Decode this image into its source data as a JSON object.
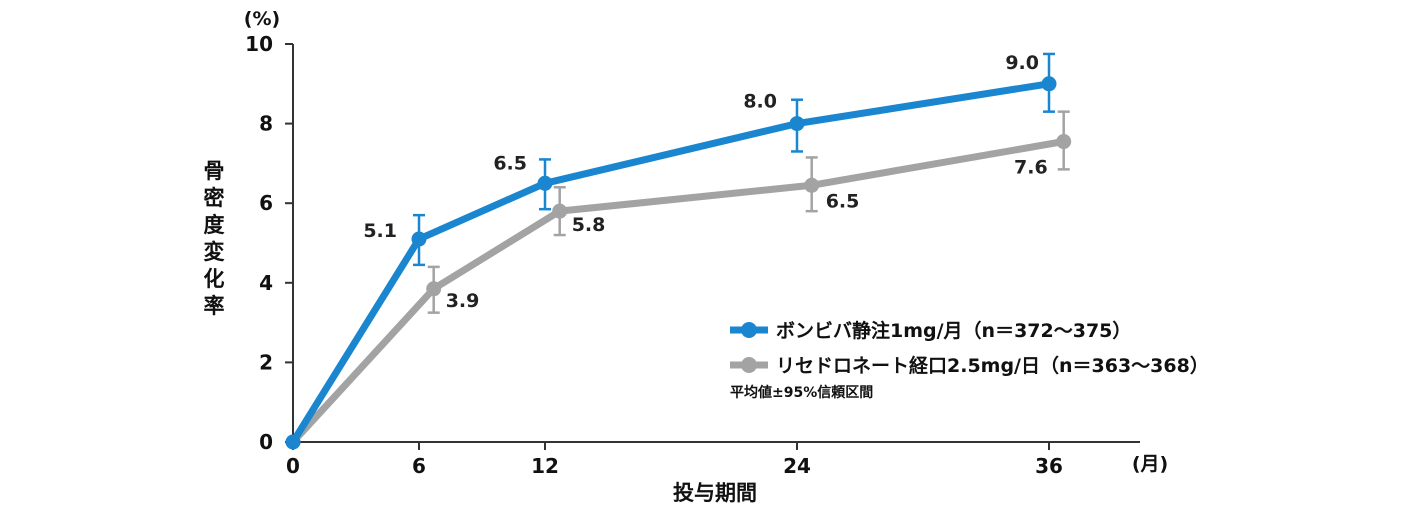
{
  "chart_data": {
    "type": "line",
    "ylabel": "骨密度変化率",
    "yunit": "(%)",
    "xlabel": "投与期間",
    "xunit": "(月)",
    "ylim": [
      0,
      10
    ],
    "xlim": [
      0,
      36
    ],
    "x_ticks": [
      "0",
      "6",
      "12",
      "24",
      "36"
    ],
    "y_ticks": [
      "0",
      "2",
      "4",
      "6",
      "8",
      "10"
    ],
    "y_tick_values": [
      0,
      2,
      4,
      6,
      8,
      10
    ],
    "note": "平均値±95%信頼区間",
    "grid": false,
    "legend_position": "bottom-right",
    "series": [
      {
        "name": "ボンビバ静注1mg/月（n＝372～375）",
        "color": "#1a86d0",
        "x": [
          0,
          6,
          12,
          24,
          36
        ],
        "values": [
          0,
          5.1,
          6.5,
          8.0,
          9.0
        ],
        "ci_low": [
          null,
          4.45,
          5.85,
          7.3,
          8.3
        ],
        "ci_high": [
          null,
          5.7,
          7.1,
          8.6,
          9.75
        ],
        "labels": [
          "",
          "5.1",
          "6.5",
          "8.0",
          "9.0"
        ]
      },
      {
        "name": "リセドロネート経口2.5mg/日（n＝363～368）",
        "color": "#a3a3a3",
        "x": [
          0,
          6,
          12,
          24,
          36
        ],
        "values": [
          0,
          3.85,
          5.8,
          6.45,
          7.55
        ],
        "ci_low": [
          null,
          3.25,
          5.2,
          5.8,
          6.85
        ],
        "ci_high": [
          null,
          4.4,
          6.4,
          7.15,
          8.3
        ],
        "labels": [
          "",
          "3.9",
          "5.8",
          "6.5",
          "7.6"
        ]
      }
    ]
  }
}
